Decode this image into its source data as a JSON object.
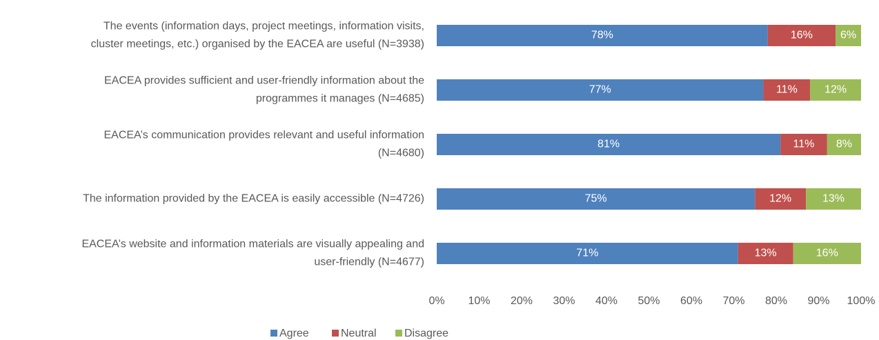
{
  "chart_data": {
    "type": "stacked_barh",
    "categories": [
      "The events (information days, project meetings, information visits,\ncluster meetings, etc.) organised by the EACEA are useful (N=3938)",
      "EACEA provides sufficient and user-friendly information about the\nprogrammes it manages (N=4685)",
      "EACEA’s communication provides relevant and useful information\n(N=4680)",
      "The information provided by the EACEA is easily accessible (N=4726)",
      "EACEA’s website and information materials are visually appealing and\nuser-friendly (N=4677)"
    ],
    "series": [
      {
        "name": "Agree",
        "color": "#4f81bd",
        "values": [
          78,
          77,
          81,
          75,
          71
        ],
        "value_labels": [
          "78%",
          "77%",
          "81%",
          "75%",
          "71%"
        ]
      },
      {
        "name": "Neutral",
        "color": "#c0504d",
        "values": [
          16,
          11,
          11,
          12,
          13
        ],
        "value_labels": [
          "16%",
          "11%",
          "11%",
          "12%",
          "13%"
        ]
      },
      {
        "name": "Disagree",
        "color": "#9bbb59",
        "values": [
          6,
          12,
          8,
          13,
          16
        ],
        "value_labels": [
          "6%",
          "12%",
          "8%",
          "13%",
          "16%"
        ]
      }
    ],
    "xlim": [
      0,
      100
    ],
    "xticks": [
      {
        "value": 0,
        "label": "0%"
      },
      {
        "value": 10,
        "label": "10%"
      },
      {
        "value": 20,
        "label": "20%"
      },
      {
        "value": 30,
        "label": "30%"
      },
      {
        "value": 40,
        "label": "40%"
      },
      {
        "value": 50,
        "label": "50%"
      },
      {
        "value": 60,
        "label": "60%"
      },
      {
        "value": 70,
        "label": "70%"
      },
      {
        "value": 80,
        "label": "80%"
      },
      {
        "value": 90,
        "label": "90%"
      },
      {
        "value": 100,
        "label": "100%"
      }
    ],
    "legend": "bottom"
  }
}
